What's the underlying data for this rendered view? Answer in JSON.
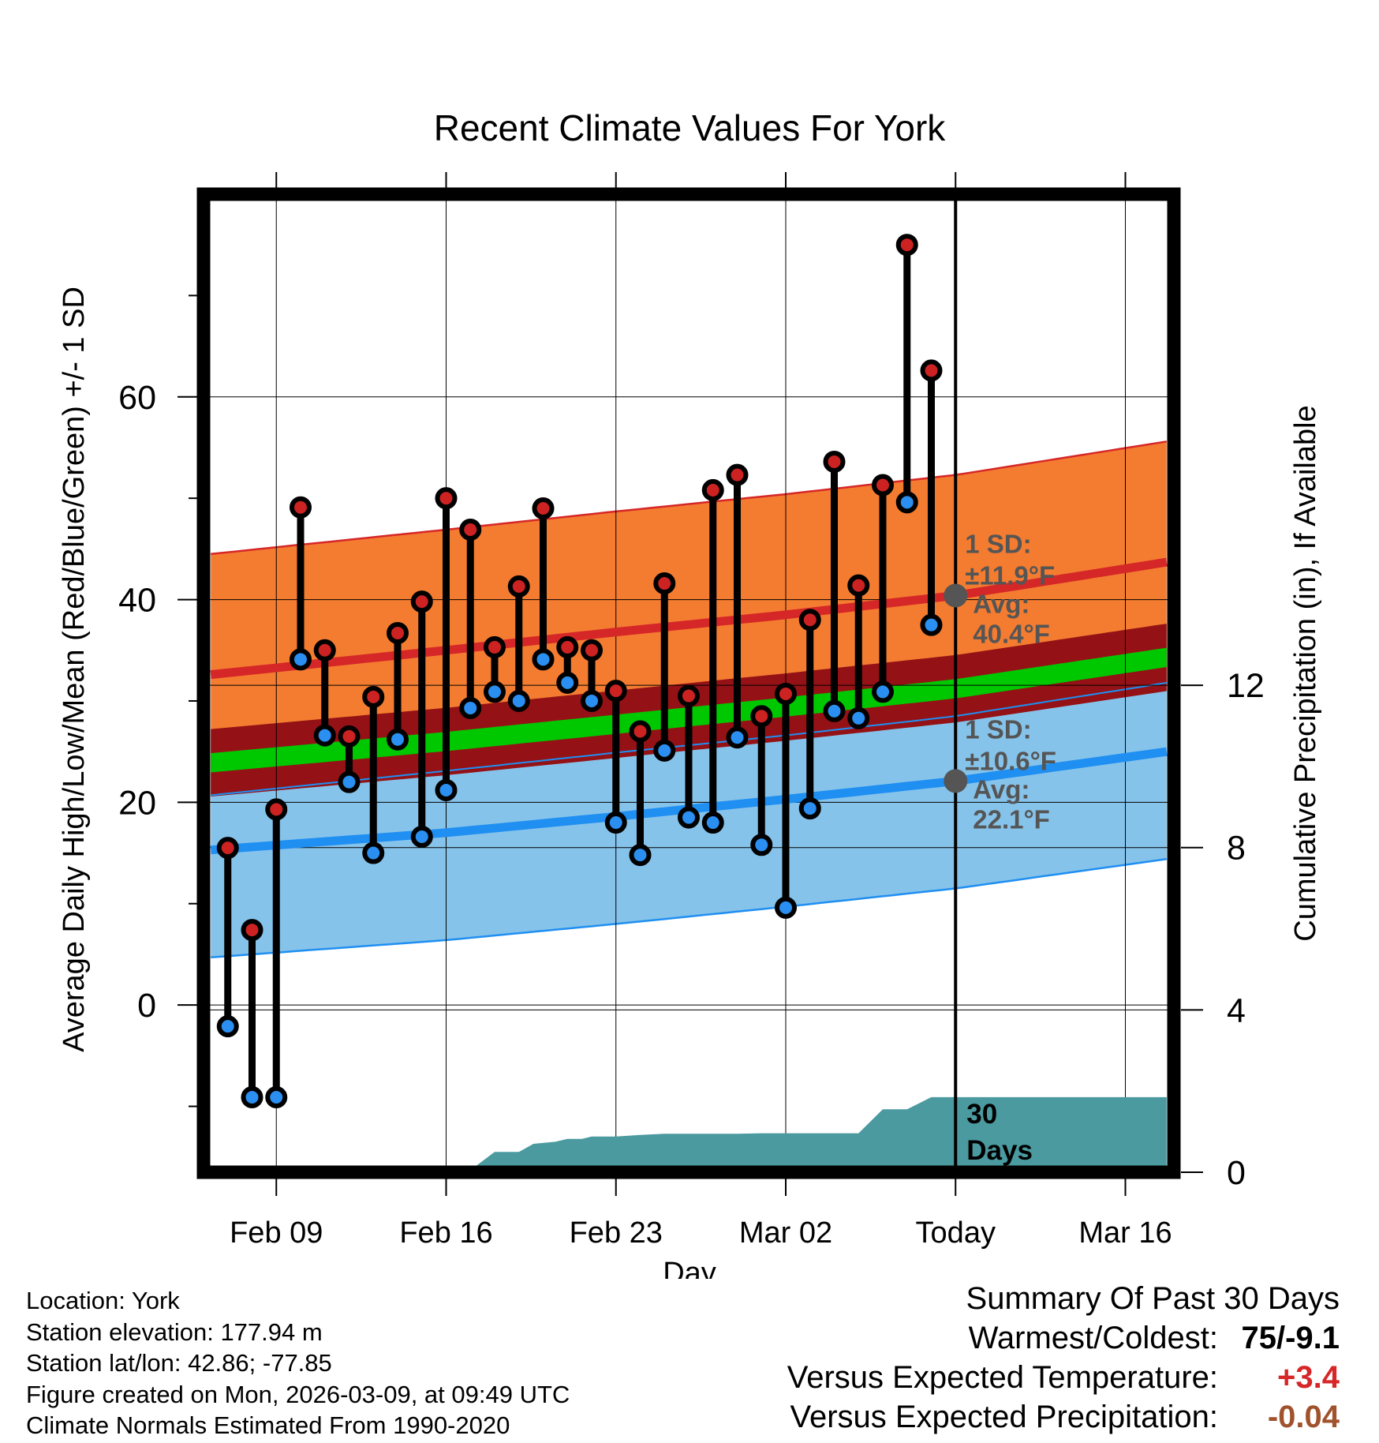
{
  "colors": {
    "high_line": "#d62728",
    "high_band": "#f47c30",
    "low_line": "#1f8ff2",
    "low_band": "#86c3ea",
    "mean_line": "#00c800",
    "mean_band": "#941216",
    "precip": "#4a9aa0",
    "high_dot": "#cc2222",
    "low_dot": "#2a8ff0",
    "today_marker": "#555555",
    "annotation": "#555555",
    "warm_anomaly": "#d62728",
    "precip_anomaly": "#a0522d"
  },
  "chart_data": {
    "type": "line",
    "title": "Recent Climate Values For York",
    "xlabel": "Day",
    "ylabel": "Average Daily High/Low/Mean (Red/Blue/Green) +/- 1 SD",
    "y2label": "Cumulative Precipitation (in), If Available",
    "xlim": [
      -3,
      37
    ],
    "ylim": [
      -16.5,
      80
    ],
    "y2lim": [
      0,
      24.1
    ],
    "x_ticks": [
      {
        "x": 0,
        "label": "Feb 09"
      },
      {
        "x": 7,
        "label": "Feb 16"
      },
      {
        "x": 14,
        "label": "Feb 23"
      },
      {
        "x": 21,
        "label": "Mar 02"
      },
      {
        "x": 28,
        "label": "Today"
      },
      {
        "x": 35,
        "label": "Mar 16"
      }
    ],
    "y_ticks": [
      0,
      20,
      40,
      60
    ],
    "y_minor_ticks": [
      -10,
      10,
      30,
      50,
      70
    ],
    "y2_ticks": [
      0,
      4,
      8,
      12
    ],
    "grid": true,
    "today_x": 28,
    "normals": {
      "x": [
        -2.7,
        7,
        14,
        21,
        28,
        36.7
      ],
      "high_mean": [
        32.6,
        35.0,
        36.8,
        38.5,
        40.4,
        43.7
      ],
      "high_sd": 11.9,
      "low_mean": [
        15.3,
        17.0,
        18.6,
        20.3,
        22.1,
        25.0
      ],
      "low_sd": 10.6,
      "mean_mean": [
        23.9,
        26.0,
        27.7,
        29.4,
        31.2,
        34.3
      ],
      "mean_band_halfwidth": 1.9
    },
    "series": [
      {
        "name": "Daily High",
        "values": [
          15.5,
          7.4,
          19.3,
          49.1,
          35.0,
          26.5,
          30.4,
          36.7,
          39.8,
          50.0,
          46.9,
          35.3,
          41.3,
          49.0,
          35.3,
          35.0,
          31.0,
          27.0,
          41.6,
          30.5,
          50.8,
          52.3,
          28.5,
          30.7,
          38.0,
          53.6,
          41.4,
          51.3,
          75.0,
          62.6
        ]
      },
      {
        "name": "Daily Low",
        "values": [
          -2.1,
          -9.1,
          -9.1,
          34.1,
          26.6,
          22.0,
          15.0,
          26.2,
          16.6,
          21.2,
          29.3,
          30.9,
          30.0,
          34.1,
          31.8,
          30.0,
          18.0,
          14.8,
          25.1,
          18.5,
          18.0,
          26.4,
          15.8,
          9.6,
          19.4,
          29.0,
          28.3,
          30.9,
          49.6,
          37.5
        ]
      }
    ],
    "x_days": [
      -2,
      -1,
      0,
      1,
      2,
      3,
      4,
      5,
      6,
      7,
      8,
      9,
      10,
      11,
      12,
      13,
      14,
      15,
      16,
      17,
      18,
      19,
      20,
      21,
      22,
      23,
      24,
      25,
      26,
      27
    ],
    "precip_cumulative": {
      "x": [
        -2.7,
        1.0,
        1.4,
        8.0,
        9.0,
        10.0,
        10.6,
        11.5,
        12.0,
        12.6,
        13.0,
        14.0,
        15.0,
        16.0,
        17.0,
        18.0,
        19.0,
        20.0,
        21.0,
        22.0,
        23.0,
        24.0,
        25.0,
        26.0,
        27.0,
        36.7
      ],
      "y": [
        0,
        0,
        0.05,
        0.05,
        0.5,
        0.5,
        0.7,
        0.75,
        0.82,
        0.82,
        0.88,
        0.88,
        0.92,
        0.95,
        0.95,
        0.95,
        0.95,
        0.96,
        0.96,
        0.96,
        0.96,
        0.96,
        1.55,
        1.55,
        1.85,
        1.85
      ]
    },
    "annotations": {
      "high": {
        "sd_label": "1 SD:",
        "sd_value": "±11.9°F",
        "avg_label": "Avg:",
        "avg_value": "40.4°F",
        "value": 40.4
      },
      "low": {
        "sd_label": "1 SD:",
        "sd_value": "±10.6°F",
        "avg_label": "Avg:",
        "avg_value": "22.1°F",
        "value": 22.1
      },
      "days_label_1": "30",
      "days_label_2": "Days"
    }
  },
  "info": {
    "location": "Location: York",
    "elevation": "Station elevation: 177.94 m",
    "latlon": "Station lat/lon: 42.86; -77.85",
    "created": "Figure created on Mon, 2026-03-09, at 09:49 UTC",
    "normals": "Climate Normals Estimated From 1990-2020"
  },
  "summary": {
    "title": "Summary Of Past 30 Days",
    "warmest_label": "Warmest/Coldest:",
    "warmest_value": "75/-9.1",
    "temp_label": "Versus Expected Temperature:",
    "temp_value": "+3.4",
    "precip_label": "Versus Expected Precipitation:",
    "precip_value": "-0.04"
  }
}
